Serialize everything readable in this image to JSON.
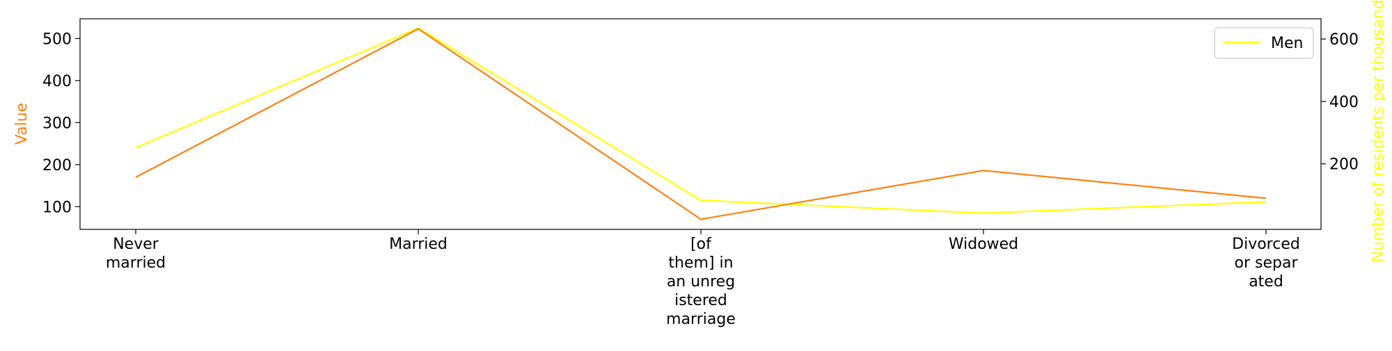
{
  "chart_data": {
    "type": "line",
    "categories": [
      [
        "Never",
        "married"
      ],
      [
        "Married"
      ],
      [
        "[of",
        "them] in",
        "an unreg",
        "istered",
        "marriage"
      ],
      [
        "Widowed"
      ],
      [
        "Divorced",
        "or separ",
        "ated"
      ]
    ],
    "series": [
      {
        "values": [
          170,
          523,
          70,
          186,
          120
        ],
        "axis": "left",
        "color": "#ff7f0e"
      },
      {
        "name": "Men",
        "values": [
          252,
          635,
          83,
          42,
          78
        ],
        "axis": "right",
        "color": "#ffff00"
      }
    ],
    "ylabel_left": "Value",
    "ylabel_left_color": "#ff7f0e",
    "ylabel_right": "Number of residents per thousand p",
    "ylabel_right_color": "#ffff00",
    "ylim_left": [
      46,
      547
    ],
    "ylim_right": [
      -10,
      665
    ],
    "yticks_left": [
      100,
      200,
      300,
      400,
      500
    ],
    "yticks_right": [
      200,
      400,
      600
    ],
    "grid": false,
    "legend_position": "top-right"
  }
}
